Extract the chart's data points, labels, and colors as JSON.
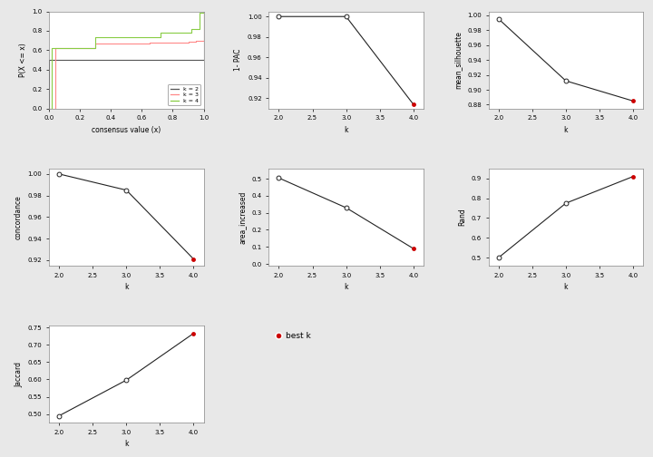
{
  "ecdf": {
    "k2": {
      "x": [
        0.0,
        0.0,
        0.5,
        0.5,
        0.5,
        1.0,
        1.0
      ],
      "y": [
        0.0,
        0.5,
        0.5,
        0.5,
        0.5,
        0.5,
        1.0
      ]
    },
    "k3": {
      "x": [
        0.0,
        0.04,
        0.04,
        0.3,
        0.3,
        0.65,
        0.65,
        0.9,
        0.9,
        0.95,
        0.95,
        1.0,
        1.0
      ],
      "y": [
        0.0,
        0.0,
        0.62,
        0.62,
        0.67,
        0.67,
        0.68,
        0.68,
        0.69,
        0.69,
        0.7,
        0.7,
        1.0
      ]
    },
    "k4": {
      "x": [
        0.0,
        0.02,
        0.02,
        0.3,
        0.3,
        0.72,
        0.72,
        0.92,
        0.92,
        0.97,
        0.97,
        1.0,
        1.0
      ],
      "y": [
        0.0,
        0.0,
        0.62,
        0.62,
        0.73,
        0.73,
        0.78,
        0.78,
        0.82,
        0.82,
        0.99,
        0.99,
        1.0
      ]
    },
    "colors": {
      "k2": "#555555",
      "k3": "#ff8888",
      "k4": "#88cc44"
    },
    "xlabel": "consensus value (x)",
    "ylabel": "P(X <= x)",
    "ylim": [
      0.0,
      1.0
    ],
    "xlim": [
      0.0,
      1.0
    ],
    "yticks": [
      0.0,
      0.2,
      0.4,
      0.6,
      0.8,
      1.0
    ],
    "xticks": [
      0.0,
      0.2,
      0.4,
      0.6,
      0.8,
      1.0
    ]
  },
  "pac": {
    "k": [
      2,
      3,
      4
    ],
    "y": [
      1.0,
      1.0,
      0.914
    ],
    "best_k": 4,
    "ylabel": "1- PAC",
    "xlabel": "k",
    "ylim": [
      0.91,
      1.005
    ],
    "yticks": [
      0.92,
      0.94,
      0.96,
      0.98,
      1.0
    ]
  },
  "silhouette": {
    "k": [
      2,
      3,
      4
    ],
    "y": [
      0.995,
      0.912,
      0.885
    ],
    "best_k": 4,
    "ylabel": "mean_silhouette",
    "xlabel": "k",
    "ylim": [
      0.875,
      1.005
    ],
    "yticks": [
      0.88,
      0.9,
      0.92,
      0.94,
      0.96,
      0.98,
      1.0
    ]
  },
  "concordance": {
    "k": [
      2,
      3,
      4
    ],
    "y": [
      1.0,
      0.985,
      0.921
    ],
    "best_k": 4,
    "ylabel": "concordance",
    "xlabel": "k",
    "ylim": [
      0.915,
      1.005
    ],
    "yticks": [
      0.92,
      0.94,
      0.96,
      0.98,
      1.0
    ]
  },
  "area_increased": {
    "k": [
      2,
      3,
      4
    ],
    "y": [
      0.505,
      0.33,
      0.09
    ],
    "best_k": 4,
    "ylabel": "area_increased",
    "xlabel": "k",
    "ylim": [
      -0.01,
      0.56
    ],
    "yticks": [
      0.0,
      0.1,
      0.2,
      0.3,
      0.4,
      0.5
    ]
  },
  "rand": {
    "k": [
      2,
      3,
      4
    ],
    "y": [
      0.5,
      0.775,
      0.91
    ],
    "best_k": 4,
    "ylabel": "Rand",
    "xlabel": "k",
    "ylim": [
      0.46,
      0.95
    ],
    "yticks": [
      0.5,
      0.6,
      0.7,
      0.8,
      0.9
    ]
  },
  "jaccard": {
    "k": [
      2,
      3,
      4
    ],
    "y": [
      0.495,
      0.598,
      0.733
    ],
    "best_k": 4,
    "ylabel": "Jaccard",
    "xlabel": "k",
    "ylim": [
      0.475,
      0.755
    ],
    "yticks": [
      0.5,
      0.55,
      0.6,
      0.65,
      0.7,
      0.75
    ]
  },
  "best_k_color": "#cc0000",
  "line_color": "#222222",
  "fig_bg_color": "#e8e8e8",
  "ax_bg_color": "#ffffff"
}
